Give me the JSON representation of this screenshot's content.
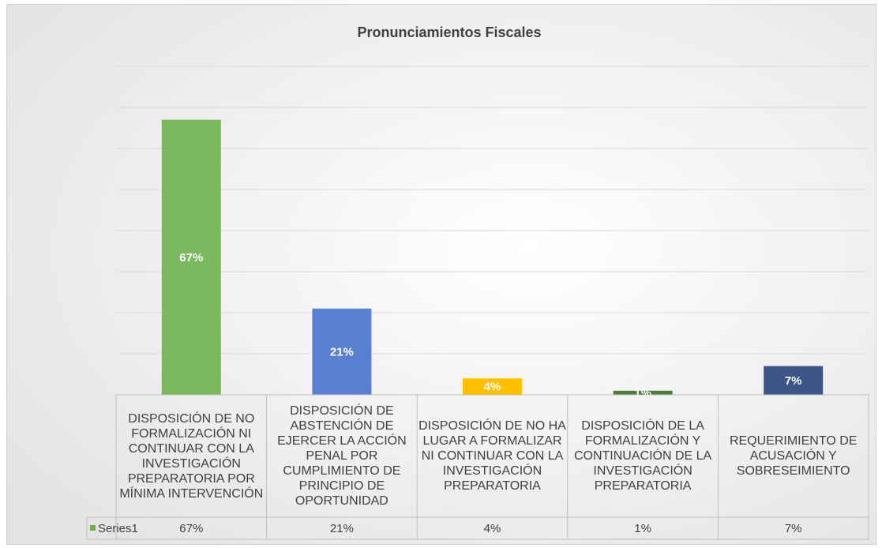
{
  "chart_data": {
    "type": "bar",
    "title": "Pronunciamientos Fiscales",
    "categories": [
      "DISPOSICIÓN DE NO FORMALIZACIÓN NI CONTINUAR CON LA INVESTIGACIÓN PREPARATORIA POR MÍNIMA INTERVENCIÓN",
      "DISPOSICIÓN DE ABSTENCIÓN DE EJERCER LA ACCIÓN PENAL POR CUMPLIMIENTO DE PRINCIPIO DE OPORTUNIDAD",
      "DISPOSICIÓN DE NO HA LUGAR A FORMALIZAR NI CONTINUAR CON LA INVESTIGACIÓN PREPARATORIA",
      "DISPOSICIÓN DE LA FORMALIZACIÓN Y CONTINUACIÓN DE LA INVESTIGACIÓN PREPARATORIA",
      "REQUERIMIENTO DE ACUSACIÓN Y SOBRESEIMIENTO"
    ],
    "series": [
      {
        "name": "Series1",
        "color": "#70ad47",
        "colors": [
          "#7cb85e",
          "#5b80d0",
          "#ffc000",
          "#4f7a3b",
          "#3b5587"
        ],
        "values": [
          67,
          21,
          4,
          1,
          7
        ],
        "value_labels": [
          "67%",
          "21%",
          "4%",
          "1%",
          "7%"
        ]
      }
    ],
    "ylim": [
      0,
      80
    ],
    "yticks": [
      0,
      10,
      20,
      30,
      40,
      50,
      60,
      70,
      80
    ],
    "grid": true,
    "legend": "data-table"
  }
}
